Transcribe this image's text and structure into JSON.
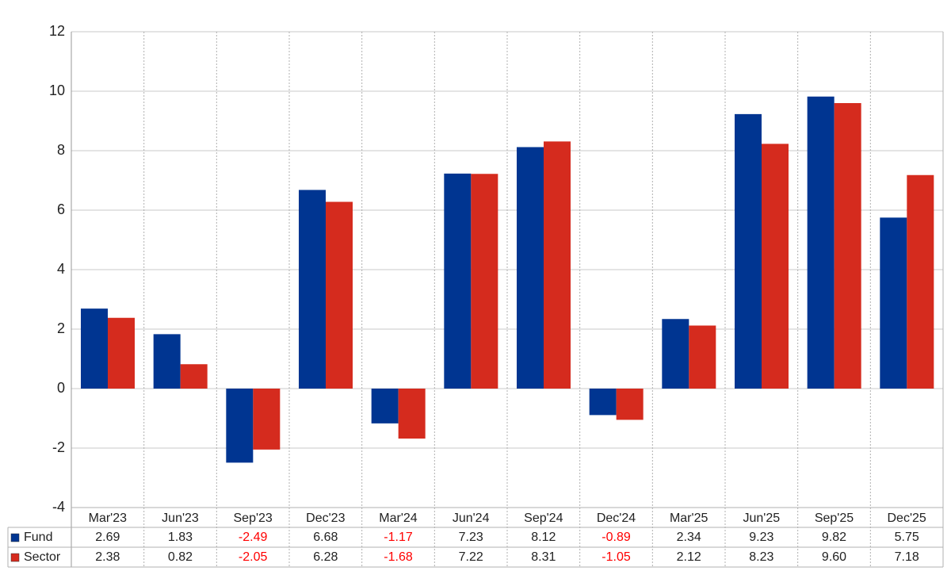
{
  "chart_data": {
    "type": "bar",
    "categories": [
      "Mar'23",
      "Jun'23",
      "Sep'23",
      "Dec'23",
      "Mar'24",
      "Jun'24",
      "Sep'24",
      "Dec'24",
      "Mar'25",
      "Jun'25",
      "Sep'25",
      "Dec'25"
    ],
    "series": [
      {
        "name": "Fund",
        "color": "#003591",
        "values": [
          2.69,
          1.83,
          -2.49,
          6.68,
          -1.17,
          7.23,
          8.12,
          -0.89,
          2.34,
          9.23,
          9.82,
          5.75
        ],
        "value_labels": [
          "2.69",
          "1.83",
          "-2.49",
          "6.68",
          "-1.17",
          "7.23",
          "8.12",
          "-0.89",
          "2.34",
          "9.23",
          "9.82",
          "5.75"
        ]
      },
      {
        "name": "Sector",
        "color": "#d52b1e",
        "values": [
          2.38,
          0.82,
          -2.05,
          6.28,
          -1.68,
          7.22,
          8.31,
          -1.05,
          2.12,
          8.23,
          9.6,
          7.18
        ],
        "value_labels": [
          "2.38",
          "0.82",
          "-2.05",
          "6.28",
          "-1.68",
          "7.22",
          "8.31",
          "-1.05",
          "2.12",
          "8.23",
          "9.60",
          "7.18"
        ]
      }
    ],
    "ylim": [
      -4,
      12
    ],
    "yticks": [
      -4,
      -2,
      0,
      2,
      4,
      6,
      8,
      10,
      12
    ],
    "grid": true,
    "negative_label_color": "#ff0000"
  }
}
